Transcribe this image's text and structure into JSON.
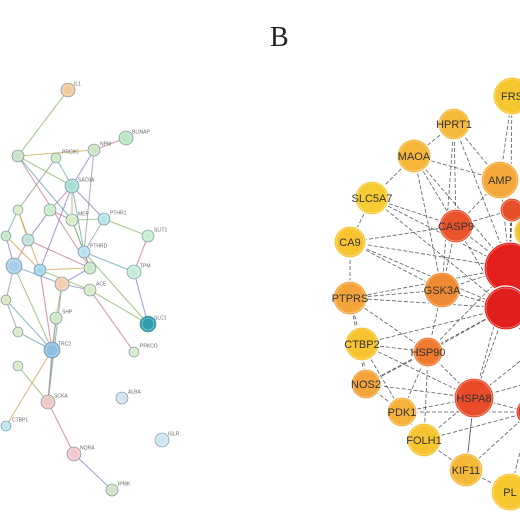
{
  "panel_label": "B",
  "network_a": {
    "nodes": [
      {
        "id": "a0",
        "label": "IL1",
        "color": "#f3c9a0"
      },
      {
        "id": "a1",
        "label": "BLINAP",
        "color": "#b9e6c5"
      },
      {
        "id": "a2",
        "label": "NPM",
        "color": "#cfe6c3"
      },
      {
        "id": "a3",
        "label": "PRC8C",
        "color": "#cde8c1"
      },
      {
        "id": "a4",
        "label": "",
        "color": "#c7e2c7"
      },
      {
        "id": "a5",
        "label": "SAC6A",
        "color": "#a8ddd5"
      },
      {
        "id": "a6",
        "label": "PTHR1",
        "color": "#b8e3ea"
      },
      {
        "id": "a7",
        "label": "",
        "color": "#c9ecc9"
      },
      {
        "id": "a8",
        "label": "",
        "color": "#d9ecc1"
      },
      {
        "id": "a9",
        "label": "MEP",
        "color": "#d8eec9"
      },
      {
        "id": "a10",
        "label": "",
        "color": "#bfe2d8"
      },
      {
        "id": "a11",
        "label": "",
        "color": "#c6e6c6"
      },
      {
        "id": "a12",
        "label": "PTHRD",
        "color": "#bcdff0"
      },
      {
        "id": "a13",
        "label": "SLIT1",
        "color": "#c7ecd0"
      },
      {
        "id": "a14",
        "label": "",
        "color": "#cce7c4"
      },
      {
        "id": "a15",
        "label": "",
        "color": "#a9cfe8"
      },
      {
        "id": "a16",
        "label": "",
        "color": "#a6d4ea"
      },
      {
        "id": "a17",
        "label": "",
        "color": "#f5cdb0"
      },
      {
        "id": "a18",
        "label": "",
        "color": "#d9e5c3"
      },
      {
        "id": "a19",
        "label": "ACE",
        "color": "#d6ecc6"
      },
      {
        "id": "a20",
        "label": "TPM",
        "color": "#c5ecd8"
      },
      {
        "id": "a21",
        "label": "SHP",
        "color": "#d2e7c6"
      },
      {
        "id": "a22",
        "label": "",
        "color": "#d9e7c4"
      },
      {
        "id": "a23",
        "label": "SLC1",
        "color": "#2f9fae"
      },
      {
        "id": "a24",
        "label": "TRC2",
        "color": "#8fbfe0"
      },
      {
        "id": "a25",
        "label": "",
        "color": "#d6e9c7"
      },
      {
        "id": "a26",
        "label": "PRKCG",
        "color": "#d7ecc9"
      },
      {
        "id": "a27",
        "label": "SCKA",
        "color": "#edc7c1"
      },
      {
        "id": "a28",
        "label": "ALBA",
        "color": "#d3e3ef"
      },
      {
        "id": "a29",
        "label": "CTBP1",
        "color": "#bde3ef"
      },
      {
        "id": "a30",
        "label": "ISLR",
        "color": "#cce6f0"
      },
      {
        "id": "a31",
        "label": "NQRA",
        "color": "#f2c8cf"
      },
      {
        "id": "a32",
        "label": "IPMK",
        "color": "#d2e4c5"
      }
    ],
    "edges": [
      [
        "a0",
        "a4"
      ],
      [
        "a1",
        "a2"
      ],
      [
        "a2",
        "a5"
      ],
      [
        "a2",
        "a4"
      ],
      [
        "a3",
        "a5"
      ],
      [
        "a3",
        "a8"
      ],
      [
        "a4",
        "a5"
      ],
      [
        "a5",
        "a7"
      ],
      [
        "a5",
        "a6"
      ],
      [
        "a5",
        "a9"
      ],
      [
        "a5",
        "a12"
      ],
      [
        "a6",
        "a12"
      ],
      [
        "a6",
        "a13"
      ],
      [
        "a7",
        "a9"
      ],
      [
        "a7",
        "a10"
      ],
      [
        "a8",
        "a10"
      ],
      [
        "a8",
        "a11"
      ],
      [
        "a9",
        "a14"
      ],
      [
        "a9",
        "a12"
      ],
      [
        "a10",
        "a15"
      ],
      [
        "a11",
        "a15"
      ],
      [
        "a11",
        "a16"
      ],
      [
        "a12",
        "a20"
      ],
      [
        "a12",
        "a14"
      ],
      [
        "a12",
        "a23"
      ],
      [
        "a13",
        "a20"
      ],
      [
        "a14",
        "a17"
      ],
      [
        "a14",
        "a16"
      ],
      [
        "a15",
        "a17"
      ],
      [
        "a15",
        "a18"
      ],
      [
        "a16",
        "a19"
      ],
      [
        "a16",
        "a24"
      ],
      [
        "a17",
        "a19"
      ],
      [
        "a17",
        "a21"
      ],
      [
        "a17",
        "a27"
      ],
      [
        "a18",
        "a22"
      ],
      [
        "a19",
        "a23"
      ],
      [
        "a19",
        "a26"
      ],
      [
        "a20",
        "a23"
      ],
      [
        "a21",
        "a24"
      ],
      [
        "a22",
        "a24"
      ],
      [
        "a24",
        "a27"
      ],
      [
        "a25",
        "a27"
      ],
      [
        "a27",
        "a31"
      ],
      [
        "a31",
        "a32"
      ],
      [
        "a29",
        "a24"
      ],
      [
        "a4",
        "a9"
      ],
      [
        "a2",
        "a12"
      ],
      [
        "a6",
        "a9"
      ],
      [
        "a10",
        "a14"
      ],
      [
        "a5",
        "a16"
      ],
      [
        "a8",
        "a16"
      ],
      [
        "a18",
        "a24"
      ],
      [
        "a21",
        "a27"
      ],
      [
        "a15",
        "a24"
      ],
      [
        "a4",
        "a14"
      ]
    ]
  },
  "network_b": {
    "nodes": [
      {
        "id": "b0",
        "label": "FRS",
        "color": "#f7c730"
      },
      {
        "id": "b1",
        "label": "HPRT1",
        "color": "#f6b93a"
      },
      {
        "id": "b2",
        "label": "MAOA",
        "color": "#f6b638"
      },
      {
        "id": "b3",
        "label": "AMP",
        "color": "#f5a83a"
      },
      {
        "id": "b4",
        "label": "SLC5A7",
        "color": "#f7cc30"
      },
      {
        "id": "b5",
        "label": "CASP9",
        "color": "#e9542c"
      },
      {
        "id": "b6",
        "label": "CA9",
        "color": "#f7c430"
      },
      {
        "id": "b7",
        "label": "",
        "color": "#e3201e"
      },
      {
        "id": "b8",
        "label": "",
        "color": "#f3c02c"
      },
      {
        "id": "b9",
        "label": "",
        "color": "#e65028"
      },
      {
        "id": "b10",
        "label": "PTPRS",
        "color": "#f4a53a"
      },
      {
        "id": "b11",
        "label": "GSK3A",
        "color": "#ef8a32"
      },
      {
        "id": "b12",
        "label": "",
        "color": "#e1201e"
      },
      {
        "id": "b13",
        "label": "CTBP2",
        "color": "#f7c330"
      },
      {
        "id": "b14",
        "label": "HSP90",
        "color": "#ee7b2e"
      },
      {
        "id": "b15",
        "label": "",
        "color": "#e3281e"
      },
      {
        "id": "b16",
        "label": "NOS2",
        "color": "#f3a43a"
      },
      {
        "id": "b17",
        "label": "HSPA8",
        "color": "#ea4b28"
      },
      {
        "id": "b18",
        "label": "PDK1",
        "color": "#f6b23a"
      },
      {
        "id": "b19",
        "label": "FOLH1",
        "color": "#f7c530"
      },
      {
        "id": "b20",
        "label": "",
        "color": "#e83528"
      },
      {
        "id": "b21",
        "label": "KIF11",
        "color": "#f6b838"
      },
      {
        "id": "b22",
        "label": "PL",
        "color": "#f7c730"
      },
      {
        "id": "b23",
        "label": "",
        "color": "#e9542c"
      }
    ],
    "edges": [
      [
        "b0",
        "b3"
      ],
      [
        "b0",
        "b7"
      ],
      [
        "b1",
        "b2"
      ],
      [
        "b1",
        "b5"
      ],
      [
        "b1",
        "b3"
      ],
      [
        "b1",
        "b7"
      ],
      [
        "b2",
        "b4"
      ],
      [
        "b2",
        "b5"
      ],
      [
        "b2",
        "b11"
      ],
      [
        "b2",
        "b3"
      ],
      [
        "b3",
        "b5"
      ],
      [
        "b3",
        "b7"
      ],
      [
        "b3",
        "b8"
      ],
      [
        "b4",
        "b5"
      ],
      [
        "b4",
        "b6"
      ],
      [
        "b4",
        "b7"
      ],
      [
        "b5",
        "b6"
      ],
      [
        "b5",
        "b7"
      ],
      [
        "b5",
        "b11"
      ],
      [
        "b5",
        "b12"
      ],
      [
        "b5",
        "b9"
      ],
      [
        "b6",
        "b10"
      ],
      [
        "b6",
        "b11"
      ],
      [
        "b6",
        "b7"
      ],
      [
        "b7",
        "b8"
      ],
      [
        "b7",
        "b12"
      ],
      [
        "b7",
        "b9"
      ],
      [
        "b7",
        "b11"
      ],
      [
        "b7",
        "b14"
      ],
      [
        "b7",
        "b17"
      ],
      [
        "b8",
        "b9"
      ],
      [
        "b9",
        "b12"
      ],
      [
        "b10",
        "b11"
      ],
      [
        "b10",
        "b13"
      ],
      [
        "b10",
        "b12"
      ],
      [
        "b10",
        "b16"
      ],
      [
        "b10",
        "b14"
      ],
      [
        "b11",
        "b12"
      ],
      [
        "b11",
        "b14"
      ],
      [
        "b12",
        "b15"
      ],
      [
        "b12",
        "b17"
      ],
      [
        "b12",
        "b14"
      ],
      [
        "b12",
        "b13"
      ],
      [
        "b13",
        "b16"
      ],
      [
        "b13",
        "b14"
      ],
      [
        "b13",
        "b18"
      ],
      [
        "b14",
        "b17"
      ],
      [
        "b14",
        "b16"
      ],
      [
        "b14",
        "b18"
      ],
      [
        "b14",
        "b19"
      ],
      [
        "b15",
        "b17"
      ],
      [
        "b15",
        "b20"
      ],
      [
        "b15",
        "b23"
      ],
      [
        "b16",
        "b18"
      ],
      [
        "b16",
        "b17"
      ],
      [
        "b17",
        "b18"
      ],
      [
        "b17",
        "b19"
      ],
      [
        "b17",
        "b20"
      ],
      [
        "b17",
        "b21"
      ],
      [
        "b18",
        "b19"
      ],
      [
        "b19",
        "b21"
      ],
      [
        "b19",
        "b20"
      ],
      [
        "b20",
        "b21"
      ],
      [
        "b20",
        "b23"
      ],
      [
        "b21",
        "b22"
      ],
      [
        "b22",
        "b20"
      ],
      [
        "b23",
        "b17"
      ],
      [
        "b1",
        "b11"
      ],
      [
        "b4",
        "b12"
      ],
      [
        "b6",
        "b12"
      ],
      [
        "b10",
        "b7"
      ],
      [
        "b2",
        "b7"
      ],
      [
        "b3",
        "b9"
      ],
      [
        "b16",
        "b12"
      ],
      [
        "b18",
        "b20"
      ],
      [
        "b13",
        "b17"
      ],
      [
        "b21",
        "b17"
      ]
    ]
  }
}
